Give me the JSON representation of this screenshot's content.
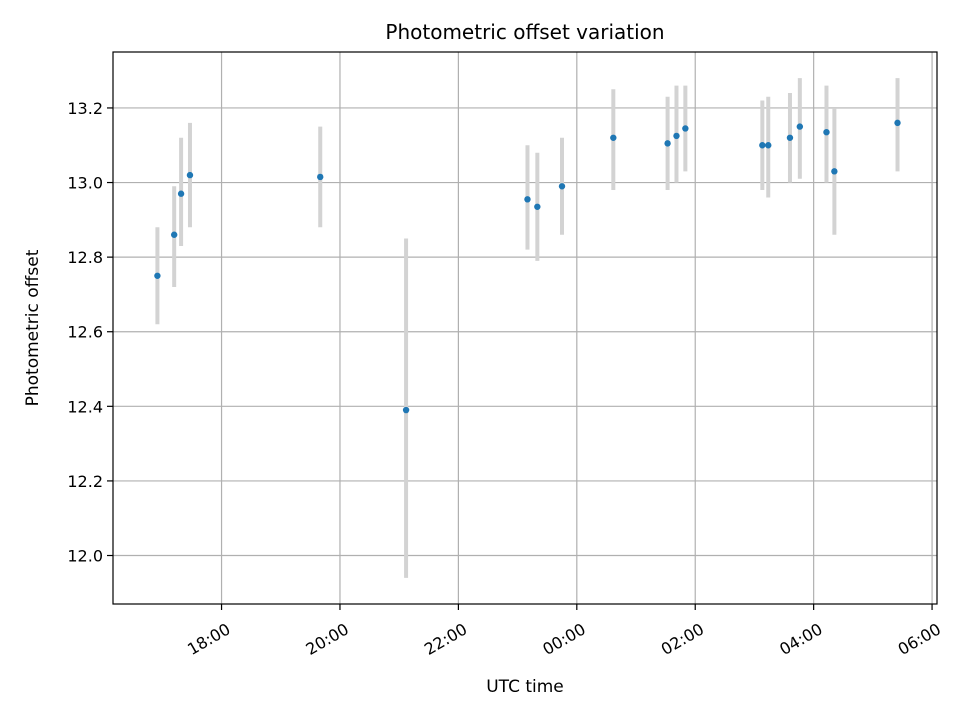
{
  "chart_data": {
    "type": "scatter",
    "title": "Photometric offset variation",
    "xlabel": "UTC time",
    "ylabel": "Photometric offset",
    "x_axis": {
      "kind": "time",
      "unit": "hours",
      "range": [
        "16:10",
        "30:05"
      ],
      "ticks": [
        {
          "value": "18:00",
          "label": "18:00"
        },
        {
          "value": "20:00",
          "label": "20:00"
        },
        {
          "value": "22:00",
          "label": "22:00"
        },
        {
          "value": "24:00",
          "label": "00:00"
        },
        {
          "value": "26:00",
          "label": "02:00"
        },
        {
          "value": "28:00",
          "label": "04:00"
        },
        {
          "value": "30:00",
          "label": "06:00"
        }
      ]
    },
    "y_axis": {
      "range": [
        11.87,
        13.35
      ],
      "ticks": [
        12.0,
        12.2,
        12.4,
        12.6,
        12.8,
        13.0,
        13.2
      ]
    },
    "grid": true,
    "colors": {
      "point": "#1f77b4",
      "errorbar": "#d3d3d3",
      "grid": "#b0b0b0",
      "axis": "#000000"
    },
    "points": [
      {
        "x": "16:55",
        "y": 12.75,
        "ylow": 12.62,
        "yhigh": 12.88
      },
      {
        "x": "17:12",
        "y": 12.86,
        "ylow": 12.72,
        "yhigh": 12.99
      },
      {
        "x": "17:19",
        "y": 12.97,
        "ylow": 12.83,
        "yhigh": 13.12
      },
      {
        "x": "17:28",
        "y": 13.02,
        "ylow": 12.88,
        "yhigh": 13.16
      },
      {
        "x": "19:40",
        "y": 13.015,
        "ylow": 12.88,
        "yhigh": 13.15
      },
      {
        "x": "21:07",
        "y": 12.39,
        "ylow": 11.94,
        "yhigh": 12.85
      },
      {
        "x": "23:10",
        "y": 12.955,
        "ylow": 12.82,
        "yhigh": 13.1
      },
      {
        "x": "23:20",
        "y": 12.935,
        "ylow": 12.79,
        "yhigh": 13.08
      },
      {
        "x": "23:45",
        "y": 12.99,
        "ylow": 12.86,
        "yhigh": 13.12
      },
      {
        "x": "24:37",
        "y": 13.12,
        "ylow": 12.98,
        "yhigh": 13.25
      },
      {
        "x": "25:32",
        "y": 13.105,
        "ylow": 12.98,
        "yhigh": 13.23
      },
      {
        "x": "25:41",
        "y": 13.125,
        "ylow": 13.0,
        "yhigh": 13.26
      },
      {
        "x": "25:50",
        "y": 13.145,
        "ylow": 13.03,
        "yhigh": 13.26
      },
      {
        "x": "27:08",
        "y": 13.1,
        "ylow": 12.98,
        "yhigh": 13.22
      },
      {
        "x": "27:14",
        "y": 13.1,
        "ylow": 12.96,
        "yhigh": 13.23
      },
      {
        "x": "27:36",
        "y": 13.12,
        "ylow": 13.0,
        "yhigh": 13.24
      },
      {
        "x": "27:46",
        "y": 13.15,
        "ylow": 13.01,
        "yhigh": 13.28
      },
      {
        "x": "28:13",
        "y": 13.135,
        "ylow": 13.0,
        "yhigh": 13.26
      },
      {
        "x": "28:21",
        "y": 13.03,
        "ylow": 12.86,
        "yhigh": 13.2
      },
      {
        "x": "29:25",
        "y": 13.16,
        "ylow": 13.03,
        "yhigh": 13.28
      }
    ]
  }
}
